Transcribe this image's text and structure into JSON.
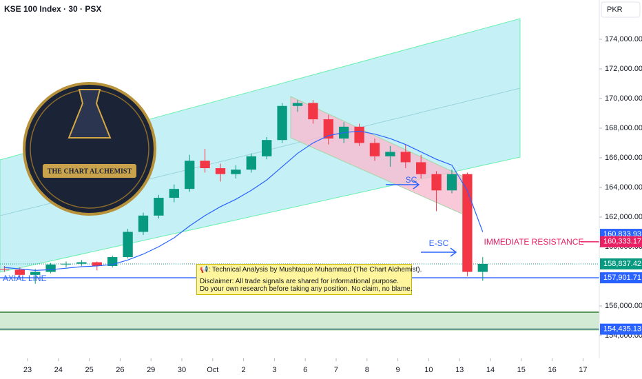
{
  "header": {
    "symbol": "KSE 100 Index · 30 · PSX",
    "currency": "PKR"
  },
  "logo": {
    "text": "THE CHART ALCHEMIST"
  },
  "note": {
    "lines": [
      "📢: Technical Analysis by Mushtaque Muhammad (The Chart Alchemist).",
      "Disclaimer: All trade signals are shared for informational purpose.",
      "Do your own research before taking any position. No claim, no blame."
    ]
  },
  "annotations": {
    "sc": "SC",
    "esc": "E-SC",
    "resistance": "IMMEDIATE RESISTANCE",
    "axial": "AXIAL LINE"
  },
  "chart_data": {
    "type": "candlestick",
    "x": [
      -0.75,
      -0.25,
      0.25,
      0.75,
      1.25,
      1.75,
      2.25,
      2.75,
      3.25,
      3.75,
      4.25,
      4.75,
      5.25,
      5.75,
      6.25,
      6.75,
      7.25,
      7.75,
      8.25,
      8.75,
      9.25,
      9.75,
      10.25,
      10.75,
      11.25,
      11.75,
      12.25,
      12.75,
      13.25,
      13.75,
      14.25,
      14.75
    ],
    "open": [
      158500,
      158450,
      158100,
      158300,
      158800,
      158850,
      158950,
      158700,
      159300,
      161000,
      162100,
      163300,
      163900,
      165800,
      165300,
      164900,
      165200,
      166100,
      167200,
      169500,
      169700,
      168600,
      167300,
      168100,
      167000,
      166100,
      166400,
      165700,
      164900,
      163800,
      164900,
      158300
    ],
    "high": [
      158700,
      158600,
      158500,
      158900,
      159000,
      159100,
      159000,
      159400,
      161200,
      162300,
      163500,
      164200,
      166200,
      166600,
      165600,
      165500,
      166300,
      167400,
      169700,
      169900,
      169900,
      168900,
      168400,
      168300,
      167300,
      166800,
      166900,
      166200,
      165100,
      165200,
      165000,
      159300
    ],
    "low": [
      158300,
      157900,
      157500,
      158200,
      158600,
      158700,
      158400,
      158600,
      159200,
      160800,
      161900,
      163000,
      163700,
      165000,
      164400,
      164600,
      165000,
      165900,
      167000,
      169100,
      168300,
      166900,
      167000,
      166800,
      165800,
      165400,
      165300,
      164600,
      162400,
      163600,
      158000,
      157700
    ],
    "close": [
      158450,
      158100,
      158300,
      158800,
      158850,
      158950,
      158700,
      159300,
      161000,
      162100,
      163300,
      163900,
      165800,
      165300,
      164900,
      165200,
      166100,
      167200,
      169500,
      169700,
      168600,
      167300,
      168100,
      167000,
      166100,
      166400,
      165700,
      164900,
      163800,
      164900,
      158300,
      158837.42
    ],
    "colors": {
      "up": "#089981",
      "down": "#f23645"
    },
    "ma": {
      "color": "#2962ff",
      "values": [
        158600,
        158500,
        158400,
        158450,
        158550,
        158650,
        158700,
        158800,
        159100,
        159500,
        160000,
        160600,
        161400,
        162100,
        162700,
        163200,
        163800,
        164500,
        165400,
        166300,
        167000,
        167500,
        167700,
        167800,
        167600,
        167300,
        166900,
        166400,
        165900,
        165500,
        163800,
        161000
      ]
    },
    "xlim": [
      -0.893,
      18.527
    ],
    "ylim": [
      152465,
      176651
    ],
    "xticks": [
      {
        "value": 0,
        "label": "23"
      },
      {
        "value": 1,
        "label": "24"
      },
      {
        "value": 2,
        "label": "25"
      },
      {
        "value": 3,
        "label": "26"
      },
      {
        "value": 4,
        "label": "29"
      },
      {
        "value": 5,
        "label": "30"
      },
      {
        "value": 6,
        "label": "Oct"
      },
      {
        "value": 7,
        "label": "2"
      },
      {
        "value": 8,
        "label": "3"
      },
      {
        "value": 9,
        "label": "6"
      },
      {
        "value": 10,
        "label": "7"
      },
      {
        "value": 11,
        "label": "8"
      },
      {
        "value": 12,
        "label": "9"
      },
      {
        "value": 13,
        "label": "10"
      },
      {
        "value": 14,
        "label": "13"
      },
      {
        "value": 15,
        "label": "14"
      },
      {
        "value": 16,
        "label": "15"
      },
      {
        "value": 17,
        "label": "16"
      },
      {
        "value": 18,
        "label": "17"
      }
    ],
    "yticks": [
      {
        "value": 154000,
        "label": "154,000.00"
      },
      {
        "value": 156000,
        "label": "156,000.00"
      },
      {
        "value": 158000,
        "label": "158,000.00"
      },
      {
        "value": 160000,
        "label": "160,000.00"
      },
      {
        "value": 162000,
        "label": "162,000.00"
      },
      {
        "value": 164000,
        "label": "164,000.00"
      },
      {
        "value": 166000,
        "label": "166,000.00"
      },
      {
        "value": 168000,
        "label": "168,000.00"
      },
      {
        "value": 170000,
        "label": "170,000.00"
      },
      {
        "value": 172000,
        "label": "172,000.00"
      },
      {
        "value": 174000,
        "label": "174,000.00"
      }
    ],
    "price_labels": [
      {
        "value": 160833.93,
        "label": "160,833.93",
        "color": "#2962ff",
        "line": "none"
      },
      {
        "value": 160333.17,
        "label": "160,333.17",
        "color": "#e91e63",
        "line": "short"
      },
      {
        "value": 158837.42,
        "label": "158,837.42",
        "color": "#089981",
        "line": "dotted"
      },
      {
        "value": 157901.71,
        "label": "157,901.71",
        "color": "#2962ff",
        "line": "solid"
      },
      {
        "value": 154435.13,
        "label": "154,435.13",
        "color": "#2962ff",
        "line": "solid"
      }
    ]
  }
}
